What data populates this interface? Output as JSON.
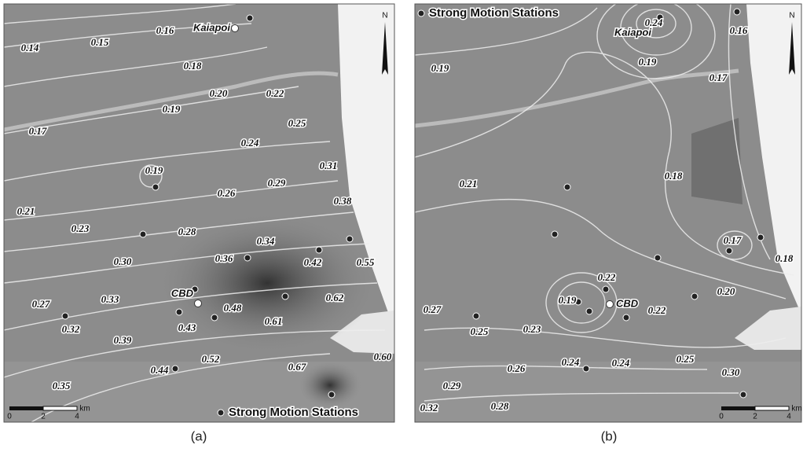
{
  "panels": [
    {
      "caption": "(a)",
      "legend": "Strong Motion Stations",
      "north": "N",
      "scale_unit": "km",
      "scale_ticks": [
        "0",
        "2",
        "4"
      ],
      "places": [
        "Kaiapoi",
        "CBD"
      ],
      "contour_labels": [
        "0.14",
        "0.15",
        "0.16",
        "0.18",
        "0.20",
        "0.22",
        "0.19",
        "0.17",
        "0.25",
        "0.24",
        "0.31",
        "0.19",
        "0.26",
        "0.29",
        "0.38",
        "0.21",
        "0.23",
        "0.28",
        "0.34",
        "0.30",
        "0.36",
        "0.42",
        "0.55",
        "0.27",
        "0.33",
        "0.62",
        "0.48",
        "0.61",
        "0.32",
        "0.43",
        "0.39",
        "0.52",
        "0.44",
        "0.67",
        "0.60",
        "0.35"
      ]
    },
    {
      "caption": "(b)",
      "legend": "Strong Motion Stations",
      "north": "N",
      "scale_unit": "km",
      "scale_ticks": [
        "0",
        "2",
        "4"
      ],
      "places": [
        "Kaiapoi",
        "CBD"
      ],
      "contour_labels": [
        "0.24",
        "0.16",
        "0.19",
        "0.19",
        "0.17",
        "0.18",
        "0.21",
        "0.17",
        "0.18",
        "0.22",
        "0.20",
        "0.19",
        "0.22",
        "0.27",
        "0.23",
        "0.25",
        "0.24",
        "0.24",
        "0.25",
        "0.26",
        "0.30",
        "0.29",
        "0.28",
        "0.32"
      ]
    }
  ]
}
